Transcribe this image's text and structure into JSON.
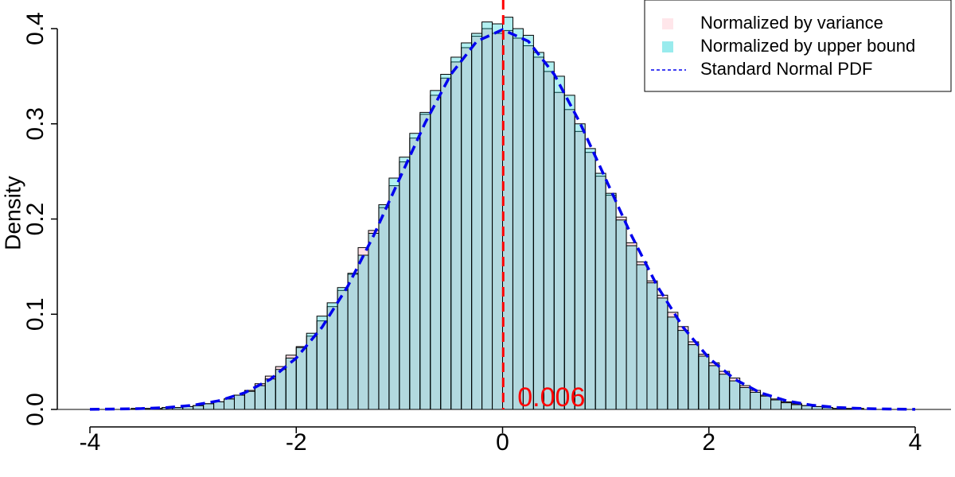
{
  "chart_data": {
    "type": "histogram",
    "ylabel": "Density",
    "bins": [
      -4,
      -3.9,
      -3.8,
      -3.7,
      -3.6,
      -3.5,
      -3.4,
      -3.3,
      -3.2,
      -3.1,
      -3,
      -2.9,
      -2.8,
      -2.7,
      -2.6,
      -2.5,
      -2.4,
      -2.3,
      -2.2,
      -2.1,
      -2,
      -1.9,
      -1.8,
      -1.7,
      -1.6,
      -1.5,
      -1.4,
      -1.3,
      -1.2,
      -1.1,
      -1,
      -0.9,
      -0.8,
      -0.7,
      -0.6,
      -0.5,
      -0.4,
      -0.3,
      -0.2,
      -0.1,
      0,
      0.1,
      0.2,
      0.3,
      0.4,
      0.5,
      0.6,
      0.7,
      0.8,
      0.9,
      1,
      1.1,
      1.2,
      1.3,
      1.4,
      1.5,
      1.6,
      1.7,
      1.8,
      1.9,
      2,
      2.1,
      2.2,
      2.3,
      2.4,
      2.5,
      2.6,
      2.7,
      2.8,
      2.9,
      3,
      3.1,
      3.2,
      3.3,
      3.4,
      3.5,
      3.6,
      3.7,
      3.8,
      3.9,
      4
    ],
    "series": [
      {
        "name": "Normalized by variance",
        "color": "#ffc0cb",
        "values": [
          0,
          0,
          0,
          0,
          0.001,
          0.001,
          0.001,
          0.002,
          0.002,
          0.003,
          0.004,
          0.006,
          0.008,
          0.011,
          0.015,
          0.02,
          0.027,
          0.035,
          0.045,
          0.057,
          0.066,
          0.077,
          0.093,
          0.108,
          0.125,
          0.142,
          0.17,
          0.188,
          0.212,
          0.235,
          0.26,
          0.285,
          0.31,
          0.33,
          0.348,
          0.365,
          0.38,
          0.392,
          0.4,
          0.395,
          0.398,
          0.39,
          0.382,
          0.37,
          0.355,
          0.333,
          0.315,
          0.292,
          0.27,
          0.245,
          0.225,
          0.202,
          0.175,
          0.155,
          0.135,
          0.12,
          0.102,
          0.087,
          0.071,
          0.058,
          0.049,
          0.04,
          0.033,
          0.025,
          0.02,
          0.015,
          0.011,
          0.008,
          0.006,
          0.004,
          0.003,
          0.002,
          0.001,
          0.001,
          0.001,
          0,
          0,
          0,
          0,
          0
        ]
      },
      {
        "name": "Normalized by upper bound",
        "color": "#00ced1",
        "values": [
          0,
          0,
          0,
          0,
          0.001,
          0.001,
          0.001,
          0.002,
          0.002,
          0.003,
          0.004,
          0.006,
          0.008,
          0.011,
          0.015,
          0.019,
          0.025,
          0.032,
          0.042,
          0.054,
          0.065,
          0.08,
          0.098,
          0.112,
          0.128,
          0.143,
          0.162,
          0.185,
          0.215,
          0.243,
          0.265,
          0.29,
          0.312,
          0.335,
          0.352,
          0.37,
          0.385,
          0.395,
          0.407,
          0.405,
          0.412,
          0.4,
          0.393,
          0.375,
          0.365,
          0.35,
          0.33,
          0.3,
          0.274,
          0.248,
          0.227,
          0.199,
          0.172,
          0.152,
          0.133,
          0.117,
          0.097,
          0.083,
          0.068,
          0.056,
          0.046,
          0.037,
          0.03,
          0.023,
          0.018,
          0.014,
          0.01,
          0.007,
          0.005,
          0.004,
          0.003,
          0.002,
          0.001,
          0.001,
          0.001,
          0,
          0,
          0,
          0,
          0
        ]
      }
    ],
    "curve": {
      "name": "Standard Normal PDF",
      "color": "#0000ee",
      "x": [
        -4,
        -3.75,
        -3.5,
        -3.25,
        -3,
        -2.75,
        -2.5,
        -2.25,
        -2,
        -1.75,
        -1.5,
        -1.25,
        -1,
        -0.75,
        -0.5,
        -0.25,
        0,
        0.25,
        0.5,
        0.75,
        1,
        1.25,
        1.5,
        1.75,
        2,
        2.25,
        2.5,
        2.75,
        3,
        3.25,
        3.5,
        3.75,
        4
      ],
      "values": [
        0.0001,
        0.0004,
        0.0009,
        0.002,
        0.0044,
        0.0091,
        0.0175,
        0.0317,
        0.054,
        0.0863,
        0.1295,
        0.1826,
        0.242,
        0.3011,
        0.3521,
        0.3867,
        0.3989,
        0.3867,
        0.3521,
        0.3011,
        0.242,
        0.1826,
        0.1295,
        0.0863,
        0.054,
        0.0317,
        0.0175,
        0.0091,
        0.0044,
        0.002,
        0.0009,
        0.0004,
        0.0001
      ]
    },
    "vline": {
      "x": 0.006,
      "color": "#ff0000",
      "label": "0.006"
    },
    "xlim": [
      -4,
      4
    ],
    "ylim": [
      0,
      0.4
    ],
    "xticks": [
      -4,
      -2,
      0,
      2,
      4
    ],
    "yticks": [
      {
        "value": 0,
        "label": "0.0"
      },
      0.1,
      0.2,
      0.3,
      0.4
    ],
    "legend": "top-right"
  }
}
